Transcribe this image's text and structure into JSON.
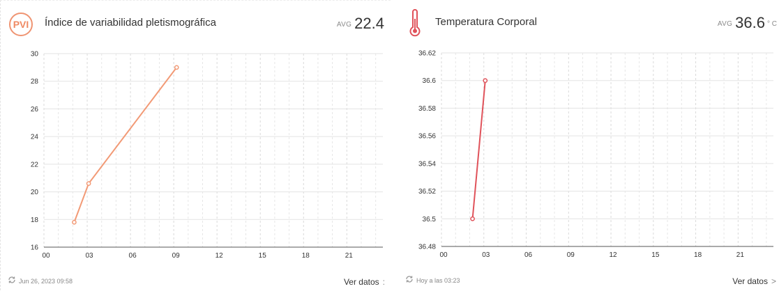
{
  "cards": [
    {
      "icon_text": "PVI",
      "icon": "pvi-badge-icon",
      "title": "Índice de variabilidad pletismográfica",
      "avg_label": "AVG",
      "avg_value": "22.4",
      "unit": "",
      "footer_time": "Jun 26, 2023 09:58",
      "view_label": "Ver datos",
      "view_suffix": ":",
      "color": "#f29a76"
    },
    {
      "icon_text": "",
      "icon": "thermometer-icon",
      "title": "Temperatura Corporal",
      "avg_label": "AVG",
      "avg_value": "36.6",
      "unit": "° C",
      "footer_time": "Hoy a las 03:23",
      "view_label": "Ver datos",
      "view_suffix": ">",
      "color": "#e0525a"
    }
  ],
  "chart_data": [
    {
      "type": "line",
      "x_ticks": [
        "00",
        "03",
        "06",
        "09",
        "12",
        "15",
        "18",
        "21"
      ],
      "xlim": [
        0,
        23.5
      ],
      "ylim": [
        16,
        30
      ],
      "y_ticks": [
        "16",
        "18",
        "20",
        "22",
        "24",
        "26",
        "28",
        "30"
      ],
      "points": [
        [
          2.1,
          17.8
        ],
        [
          3.1,
          20.6
        ],
        [
          9.2,
          29.0
        ]
      ],
      "grid": true
    },
    {
      "type": "line",
      "x_ticks": [
        "00",
        "03",
        "06",
        "09",
        "12",
        "15",
        "18",
        "21"
      ],
      "xlim": [
        0,
        23.5
      ],
      "ylim": [
        36.48,
        36.62
      ],
      "y_ticks": [
        "36.48",
        "36.5",
        "36.52",
        "36.54",
        "36.56",
        "36.58",
        "36.6",
        "36.62"
      ],
      "points": [
        [
          2.2,
          36.5
        ],
        [
          3.1,
          36.6
        ]
      ],
      "grid": true
    }
  ]
}
